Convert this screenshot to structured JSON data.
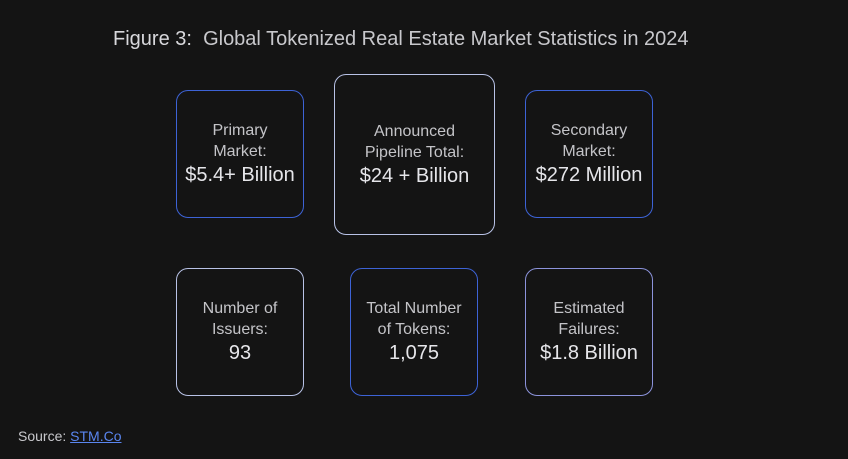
{
  "figure": {
    "number": "Figure 3:",
    "title": "Global Tokenized Real Estate Market Statistics in 2024"
  },
  "cards": [
    {
      "label": "Primary\nMarket:",
      "value": "$5.4+ Billion"
    },
    {
      "label": "Announced\nPipeline Total:",
      "value": "$24 + Billion"
    },
    {
      "label": "Secondary\nMarket:",
      "value": "$272 Million"
    },
    {
      "label": "Number of\nIssuers:",
      "value": "93"
    },
    {
      "label": "Total Number\nof Tokens:",
      "value": "1,075"
    },
    {
      "label": "Estimated\nFailures:",
      "value": "$1.8 Billion"
    }
  ],
  "source": {
    "prefix": "Source:",
    "link_text": "STM.Co"
  },
  "colors": {
    "background": "#141414",
    "border_blue": "#3d63d6",
    "border_lavender": "#8c93db",
    "border_pale": "#b8c2e6",
    "link": "#5a86f0"
  }
}
